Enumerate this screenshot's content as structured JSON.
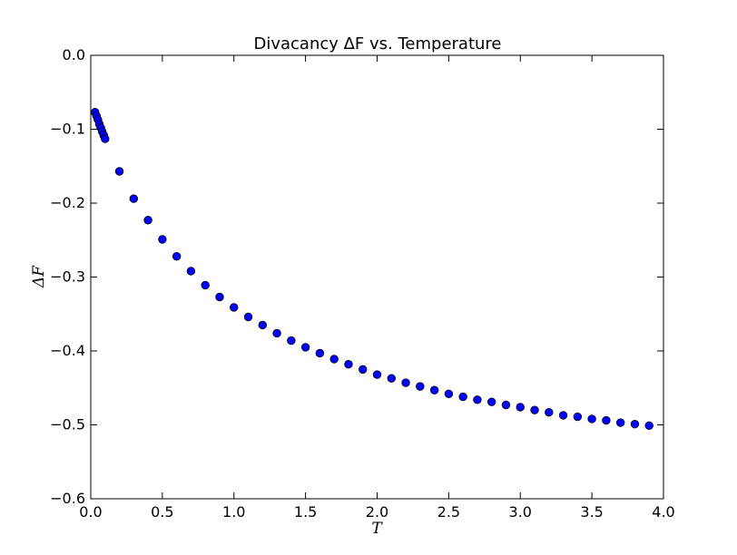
{
  "chart_data": {
    "type": "scatter",
    "title": "Divacancy ΔF vs. Temperature",
    "xlabel": "T",
    "ylabel": "ΔF",
    "xlim": [
      0.0,
      4.0
    ],
    "ylim": [
      -0.6,
      0.0
    ],
    "xticks": [
      "0.0",
      "0.5",
      "1.0",
      "1.5",
      "2.0",
      "2.5",
      "3.0",
      "3.5",
      "4.0"
    ],
    "yticks": [
      "0.0",
      "−0.1",
      "−0.2",
      "−0.3",
      "−0.4",
      "−0.5",
      "−0.6"
    ],
    "grid": false,
    "marker_color": "#0000ff",
    "marker_edge_color": "#000000",
    "series": [
      {
        "x": [
          0.03,
          0.04,
          0.05,
          0.06,
          0.07,
          0.08,
          0.09,
          0.1,
          0.2,
          0.3,
          0.4,
          0.5,
          0.6,
          0.7,
          0.8,
          0.9,
          1.0,
          1.1,
          1.2,
          1.3,
          1.4,
          1.5,
          1.6,
          1.7,
          1.8,
          1.9,
          2.0,
          2.1,
          2.2,
          2.3,
          2.4,
          2.5,
          2.6,
          2.7,
          2.8,
          2.9,
          3.0,
          3.1,
          3.2,
          3.3,
          3.4,
          3.5,
          3.6,
          3.7,
          3.8,
          3.9
        ],
        "y": [
          -0.077,
          -0.082,
          -0.087,
          -0.093,
          -0.098,
          -0.103,
          -0.108,
          -0.113,
          -0.157,
          -0.194,
          -0.223,
          -0.249,
          -0.272,
          -0.292,
          -0.311,
          -0.327,
          -0.341,
          -0.354,
          -0.365,
          -0.376,
          -0.386,
          -0.395,
          -0.403,
          -0.411,
          -0.418,
          -0.425,
          -0.432,
          -0.437,
          -0.443,
          -0.448,
          -0.453,
          -0.458,
          -0.462,
          -0.466,
          -0.469,
          -0.473,
          -0.476,
          -0.48,
          -0.483,
          -0.487,
          -0.489,
          -0.492,
          -0.494,
          -0.497,
          -0.499,
          -0.501
        ]
      }
    ]
  }
}
